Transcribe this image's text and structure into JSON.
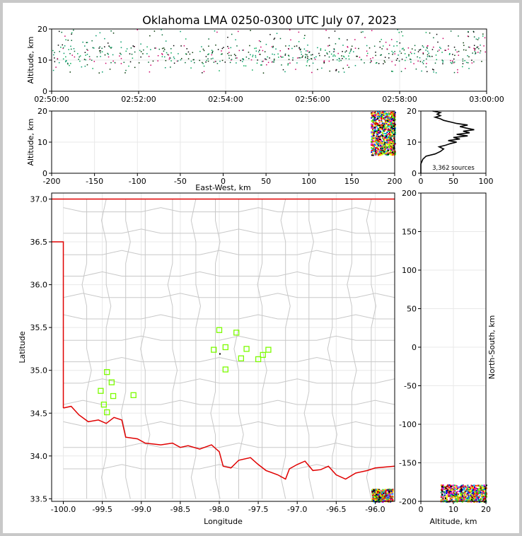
{
  "title": "Oklahoma LMA 0250-0300 UTC July 07, 2023",
  "colors": {
    "border": "#e00000",
    "county": "#c8c8c8",
    "station": "#7cfc00",
    "profile": "#000000"
  },
  "chart_data": [
    {
      "type": "scatter",
      "name": "time-height",
      "ylabel": "Altitude, km",
      "xlim": [
        0,
        10
      ],
      "ylim": [
        0,
        20
      ],
      "xticks": [
        {
          "v": 0,
          "label": "02:50:00"
        },
        {
          "v": 2,
          "label": "02:52:00"
        },
        {
          "v": 4,
          "label": "02:54:00"
        },
        {
          "v": 6,
          "label": "02:56:00"
        },
        {
          "v": 8,
          "label": "02:58:00"
        },
        {
          "v": 10,
          "label": "03:00:00"
        }
      ],
      "yticks": [
        0,
        10,
        20
      ],
      "density": {
        "x_range": [
          0,
          10
        ],
        "y_range": [
          6,
          20
        ],
        "peak_y": 12
      }
    },
    {
      "type": "scatter",
      "name": "east-west-height",
      "xlabel": "East-West, km",
      "ylabel": "Altitude, km",
      "xlim": [
        -200,
        200
      ],
      "ylim": [
        0,
        20
      ],
      "xticks": [
        -200,
        -150,
        -100,
        -50,
        0,
        50,
        100,
        150,
        200
      ],
      "yticks": [
        0,
        10,
        20
      ],
      "cluster": {
        "x": [
          172,
          200
        ],
        "y": [
          6,
          20
        ]
      }
    },
    {
      "type": "line",
      "name": "altitude-histogram",
      "xlim": [
        0,
        100
      ],
      "ylim": [
        0,
        20
      ],
      "xticks": [
        0,
        50,
        100
      ],
      "yticks": [
        0,
        10,
        20
      ],
      "annotation": "3,362 sources",
      "profile": [
        [
          0,
          0
        ],
        [
          0,
          3
        ],
        [
          3,
          4.5
        ],
        [
          8,
          5.5
        ],
        [
          22,
          6.2
        ],
        [
          30,
          7
        ],
        [
          35,
          7.8
        ],
        [
          28,
          8.5
        ],
        [
          38,
          9
        ],
        [
          45,
          9.5
        ],
        [
          55,
          10
        ],
        [
          42,
          10.5
        ],
        [
          60,
          11
        ],
        [
          50,
          11.5
        ],
        [
          72,
          12
        ],
        [
          55,
          12.5
        ],
        [
          75,
          13
        ],
        [
          65,
          13.5
        ],
        [
          82,
          14
        ],
        [
          70,
          14.5
        ],
        [
          60,
          15
        ],
        [
          72,
          15.5
        ],
        [
          55,
          16
        ],
        [
          45,
          16.5
        ],
        [
          35,
          17
        ],
        [
          30,
          17.5
        ],
        [
          22,
          18
        ],
        [
          30,
          18.5
        ],
        [
          25,
          19
        ],
        [
          30,
          19.5
        ],
        [
          18,
          20
        ]
      ]
    },
    {
      "type": "scatter",
      "name": "plan-view",
      "xlabel": "Longitude",
      "ylabel": "Latitude",
      "xlim": [
        -100.15,
        -95.75
      ],
      "ylim": [
        33.47,
        37.07
      ],
      "xticks": [
        -100.0,
        -99.5,
        -99.0,
        -98.5,
        -98.0,
        -97.5,
        -97.0,
        -96.5,
        -96.0
      ],
      "yticks": [
        33.5,
        34.0,
        34.5,
        35.0,
        35.5,
        36.0,
        36.5,
        37.0
      ],
      "stations": [
        [
          -98.0,
          35.47
        ],
        [
          -97.78,
          35.44
        ],
        [
          -98.07,
          35.24
        ],
        [
          -97.92,
          35.27
        ],
        [
          -97.65,
          35.25
        ],
        [
          -97.72,
          35.14
        ],
        [
          -97.92,
          35.01
        ],
        [
          -97.5,
          35.13
        ],
        [
          -97.44,
          35.18
        ],
        [
          -97.37,
          35.24
        ],
        [
          -99.44,
          34.98
        ],
        [
          -99.38,
          34.86
        ],
        [
          -99.52,
          34.76
        ],
        [
          -99.36,
          34.7
        ],
        [
          -99.1,
          34.71
        ],
        [
          -99.48,
          34.6
        ],
        [
          -99.44,
          34.51
        ]
      ],
      "cluster": {
        "lon": [
          -96.05,
          -95.78
        ],
        "lat": [
          33.47,
          33.62
        ]
      }
    },
    {
      "type": "scatter",
      "name": "height-north-south",
      "xlabel": "Altitude, km",
      "ylabel": "North-South, km",
      "xlim": [
        0,
        20
      ],
      "ylim": [
        -200,
        200
      ],
      "xticks": [
        0,
        10,
        20
      ],
      "yticks": [
        -200,
        -150,
        -100,
        -50,
        0,
        50,
        100,
        150,
        200
      ],
      "cluster": {
        "x": [
          6,
          20
        ],
        "y": [
          -200,
          -178
        ]
      }
    }
  ]
}
